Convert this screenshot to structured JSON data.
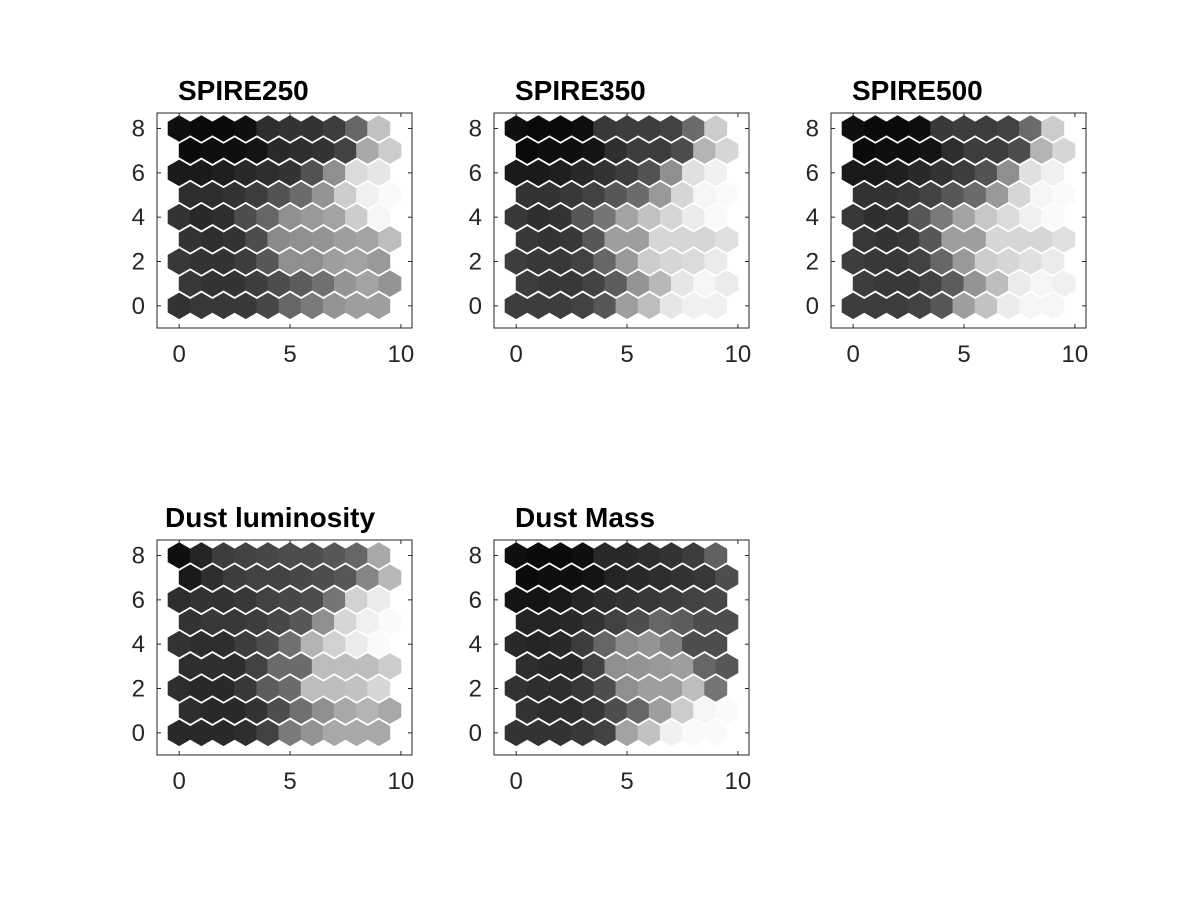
{
  "figure": {
    "type": "som-component-planes",
    "colormap": "gray (dark = low, light = high)"
  },
  "chart_data": [
    {
      "type": "heatmap",
      "title": "SPIRE250",
      "grid": "hexagonal",
      "xlim": [
        -1,
        10.5
      ],
      "ylim": [
        -1,
        8.7
      ],
      "xticks": [
        0,
        5,
        10
      ],
      "yticks": [
        0,
        2,
        4,
        6,
        8
      ],
      "values": [
        [
          0.2,
          0.22,
          0.22,
          0.22,
          0.28,
          0.4,
          0.48,
          0.58,
          0.62,
          0.62
        ],
        [
          0.22,
          0.2,
          0.2,
          0.24,
          0.3,
          0.36,
          0.44,
          0.58,
          0.64,
          0.58
        ],
        [
          0.22,
          0.2,
          0.2,
          0.24,
          0.34,
          0.56,
          0.56,
          0.62,
          0.64,
          0.6
        ],
        [
          0.2,
          0.18,
          0.2,
          0.3,
          0.54,
          0.56,
          0.58,
          0.62,
          0.64,
          0.74
        ],
        [
          0.2,
          0.16,
          0.18,
          0.3,
          0.4,
          0.56,
          0.6,
          0.64,
          0.8,
          0.96
        ],
        [
          0.18,
          0.18,
          0.2,
          0.24,
          0.32,
          0.42,
          0.58,
          0.8,
          0.94,
          0.98
        ],
        [
          0.1,
          0.1,
          0.12,
          0.16,
          0.18,
          0.2,
          0.32,
          0.56,
          0.86,
          0.9
        ],
        [
          0.04,
          0.06,
          0.06,
          0.08,
          0.16,
          0.18,
          0.2,
          0.26,
          0.66,
          0.8
        ],
        [
          0.06,
          0.04,
          0.04,
          0.06,
          0.18,
          0.2,
          0.2,
          0.24,
          0.4,
          0.76
        ]
      ]
    },
    {
      "type": "heatmap",
      "title": "SPIRE350",
      "grid": "hexagonal",
      "xlim": [
        -1,
        10.5
      ],
      "ylim": [
        -1,
        8.7
      ],
      "xticks": [
        0,
        5,
        10
      ],
      "yticks": [
        0,
        2,
        4,
        6,
        8
      ],
      "values": [
        [
          0.24,
          0.24,
          0.24,
          0.26,
          0.34,
          0.62,
          0.74,
          0.9,
          0.94,
          0.94
        ],
        [
          0.24,
          0.22,
          0.22,
          0.26,
          0.36,
          0.58,
          0.72,
          0.9,
          0.96,
          0.92
        ],
        [
          0.24,
          0.22,
          0.22,
          0.26,
          0.4,
          0.6,
          0.8,
          0.84,
          0.86,
          0.92
        ],
        [
          0.22,
          0.2,
          0.22,
          0.34,
          0.62,
          0.62,
          0.84,
          0.84,
          0.84,
          0.88
        ],
        [
          0.22,
          0.18,
          0.2,
          0.34,
          0.46,
          0.64,
          0.76,
          0.84,
          0.92,
          0.98
        ],
        [
          0.2,
          0.2,
          0.22,
          0.26,
          0.34,
          0.42,
          0.6,
          0.84,
          0.96,
          0.98
        ],
        [
          0.1,
          0.1,
          0.12,
          0.16,
          0.2,
          0.24,
          0.32,
          0.56,
          0.88,
          0.94
        ],
        [
          0.04,
          0.06,
          0.06,
          0.08,
          0.18,
          0.24,
          0.24,
          0.3,
          0.7,
          0.84
        ],
        [
          0.06,
          0.04,
          0.04,
          0.06,
          0.22,
          0.24,
          0.24,
          0.26,
          0.42,
          0.8
        ]
      ]
    },
    {
      "type": "heatmap",
      "title": "SPIRE500",
      "grid": "hexagonal",
      "xlim": [
        -1,
        10.5
      ],
      "ylim": [
        -1,
        8.7
      ],
      "xticks": [
        0,
        5,
        10
      ],
      "yticks": [
        0,
        2,
        4,
        6,
        8
      ],
      "values": [
        [
          0.24,
          0.24,
          0.24,
          0.26,
          0.34,
          0.62,
          0.76,
          0.92,
          0.96,
          0.96
        ],
        [
          0.24,
          0.22,
          0.22,
          0.26,
          0.36,
          0.58,
          0.74,
          0.92,
          0.96,
          0.94
        ],
        [
          0.24,
          0.22,
          0.22,
          0.26,
          0.4,
          0.6,
          0.8,
          0.84,
          0.88,
          0.92
        ],
        [
          0.22,
          0.2,
          0.22,
          0.34,
          0.62,
          0.62,
          0.84,
          0.84,
          0.84,
          0.88
        ],
        [
          0.22,
          0.18,
          0.2,
          0.34,
          0.48,
          0.64,
          0.78,
          0.86,
          0.94,
          0.98
        ],
        [
          0.2,
          0.2,
          0.22,
          0.26,
          0.34,
          0.42,
          0.6,
          0.84,
          0.96,
          0.98
        ],
        [
          0.1,
          0.1,
          0.12,
          0.16,
          0.2,
          0.24,
          0.32,
          0.56,
          0.88,
          0.94
        ],
        [
          0.04,
          0.06,
          0.06,
          0.08,
          0.18,
          0.24,
          0.24,
          0.3,
          0.7,
          0.84
        ],
        [
          0.06,
          0.04,
          0.04,
          0.06,
          0.22,
          0.24,
          0.24,
          0.26,
          0.42,
          0.8
        ]
      ]
    },
    {
      "type": "heatmap",
      "title": "Dust luminosity",
      "grid": "hexagonal",
      "xlim": [
        -1,
        10.5
      ],
      "ylim": [
        -1,
        8.7
      ],
      "xticks": [
        0,
        5,
        10
      ],
      "yticks": [
        0,
        2,
        4,
        6,
        8
      ],
      "values": [
        [
          0.16,
          0.16,
          0.16,
          0.18,
          0.26,
          0.48,
          0.58,
          0.66,
          0.66,
          0.66
        ],
        [
          0.18,
          0.16,
          0.16,
          0.2,
          0.3,
          0.44,
          0.56,
          0.66,
          0.7,
          0.66
        ],
        [
          0.18,
          0.16,
          0.16,
          0.22,
          0.36,
          0.42,
          0.74,
          0.74,
          0.76,
          0.84
        ],
        [
          0.18,
          0.18,
          0.18,
          0.26,
          0.42,
          0.42,
          0.74,
          0.74,
          0.74,
          0.8
        ],
        [
          0.2,
          0.18,
          0.18,
          0.24,
          0.3,
          0.44,
          0.7,
          0.82,
          0.92,
          0.98
        ],
        [
          0.2,
          0.22,
          0.22,
          0.24,
          0.28,
          0.34,
          0.56,
          0.84,
          0.94,
          0.98
        ],
        [
          0.18,
          0.2,
          0.2,
          0.22,
          0.26,
          0.28,
          0.3,
          0.46,
          0.82,
          0.92
        ],
        [
          0.1,
          0.18,
          0.24,
          0.26,
          0.26,
          0.28,
          0.3,
          0.34,
          0.52,
          0.72
        ],
        [
          0.06,
          0.14,
          0.24,
          0.26,
          0.28,
          0.3,
          0.3,
          0.34,
          0.4,
          0.66
        ]
      ]
    },
    {
      "type": "heatmap",
      "title": "Dust Mass",
      "grid": "hexagonal",
      "xlim": [
        -1,
        10.5
      ],
      "ylim": [
        -1,
        8.7
      ],
      "xticks": [
        0,
        5,
        10
      ],
      "yticks": [
        0,
        2,
        4,
        6,
        8
      ],
      "values": [
        [
          0.2,
          0.2,
          0.2,
          0.22,
          0.26,
          0.64,
          0.76,
          0.94,
          0.98,
          0.98
        ],
        [
          0.2,
          0.18,
          0.18,
          0.22,
          0.3,
          0.4,
          0.62,
          0.8,
          0.96,
          0.98
        ],
        [
          0.2,
          0.18,
          0.18,
          0.22,
          0.3,
          0.56,
          0.62,
          0.62,
          0.74,
          0.46
        ],
        [
          0.18,
          0.16,
          0.16,
          0.26,
          0.56,
          0.58,
          0.6,
          0.62,
          0.4,
          0.34
        ],
        [
          0.16,
          0.14,
          0.16,
          0.24,
          0.4,
          0.54,
          0.58,
          0.5,
          0.3,
          0.3
        ],
        [
          0.14,
          0.14,
          0.16,
          0.2,
          0.26,
          0.3,
          0.4,
          0.36,
          0.3,
          0.3
        ],
        [
          0.08,
          0.08,
          0.1,
          0.14,
          0.18,
          0.2,
          0.22,
          0.24,
          0.26,
          0.28
        ],
        [
          0.04,
          0.06,
          0.06,
          0.08,
          0.14,
          0.16,
          0.18,
          0.2,
          0.22,
          0.3
        ],
        [
          0.06,
          0.04,
          0.04,
          0.06,
          0.16,
          0.16,
          0.18,
          0.2,
          0.24,
          0.38
        ]
      ]
    }
  ]
}
